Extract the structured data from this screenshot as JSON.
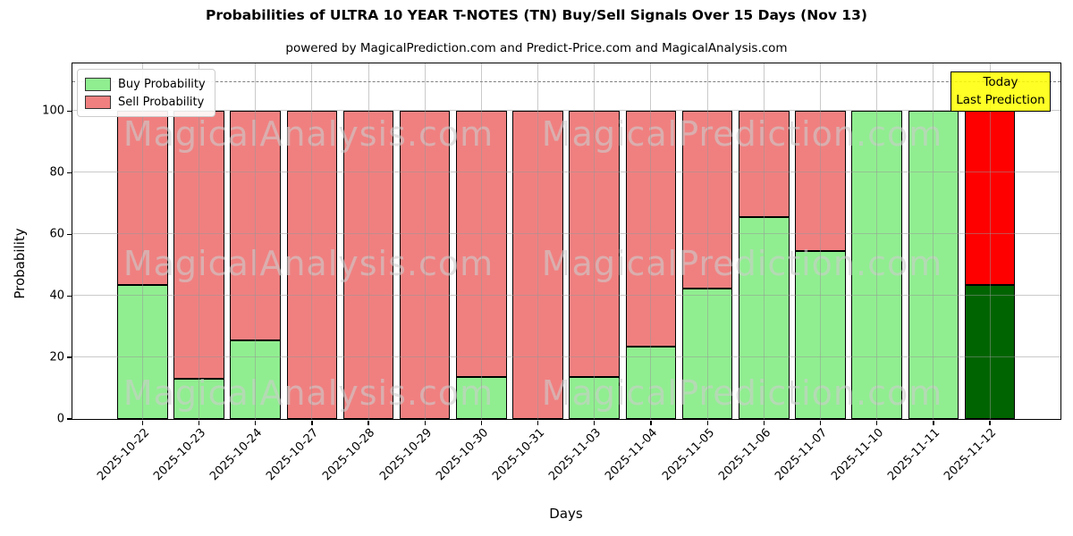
{
  "figure": {
    "title": "Probabilities of ULTRA 10 YEAR T-NOTES (TN) Buy/Sell Signals Over 15 Days (Nov 13)",
    "subtitle": "powered by MagicalPrediction.com and Predict-Price.com and MagicalAnalysis.com",
    "xlabel": "Days",
    "ylabel": "Probability"
  },
  "legend": {
    "items": [
      {
        "label": "Buy Probability",
        "color_key": "buy"
      },
      {
        "label": "Sell Probability",
        "color_key": "sell"
      }
    ]
  },
  "annotation": {
    "line1": "Today",
    "line2": "Last Prediction"
  },
  "watermarks": {
    "left": "MagicalAnalysis.com",
    "right": "MagicalPrediction.com"
  },
  "colors": {
    "buy": "#90EE90",
    "sell": "#F08080",
    "today_buy": "#006400",
    "today_sell": "#FF0000",
    "bar_edge": "#000000",
    "grid": "#969696",
    "dashed_line": "#7F7F7F",
    "annotation_bg": "#FFFF00",
    "annotation_border": "#000000",
    "watermark": "#CDCDCD",
    "legend_border": "#CCCCCC"
  },
  "chart_data": {
    "type": "bar",
    "stacked": true,
    "title": "Probabilities of ULTRA 10 YEAR T-NOTES (TN) Buy/Sell Signals Over 15 Days (Nov 13)",
    "subtitle": "powered by MagicalPrediction.com and Predict-Price.com and MagicalAnalysis.com",
    "xlabel": "Days",
    "ylabel": "Probability",
    "categories": [
      "2025-10-22",
      "2025-10-23",
      "2025-10-24",
      "2025-10-27",
      "2025-10-28",
      "2025-10-29",
      "2025-10-30",
      "2025-10-31",
      "2025-11-03",
      "2025-11-04",
      "2025-11-05",
      "2025-11-06",
      "2025-11-07",
      "2025-11-10",
      "2025-11-11",
      "2025-11-12"
    ],
    "series": [
      {
        "name": "Buy Probability",
        "values": [
          43.5,
          13,
          25.5,
          0,
          0,
          0,
          13.5,
          0,
          13.5,
          23.5,
          42.5,
          65.5,
          54.5,
          100,
          100,
          43.5
        ]
      },
      {
        "name": "Sell Probability",
        "values": [
          56.5,
          87,
          74.5,
          100,
          100,
          100,
          86.5,
          100,
          86.5,
          76.5,
          57.5,
          34.5,
          45.5,
          0,
          0,
          56.5
        ]
      }
    ],
    "today_index": 15,
    "ylim": [
      0,
      115.5
    ],
    "yticks": [
      0,
      20,
      40,
      60,
      80,
      100
    ],
    "dashed_line_y": 110,
    "grid": true,
    "legend_position": "upper left"
  }
}
